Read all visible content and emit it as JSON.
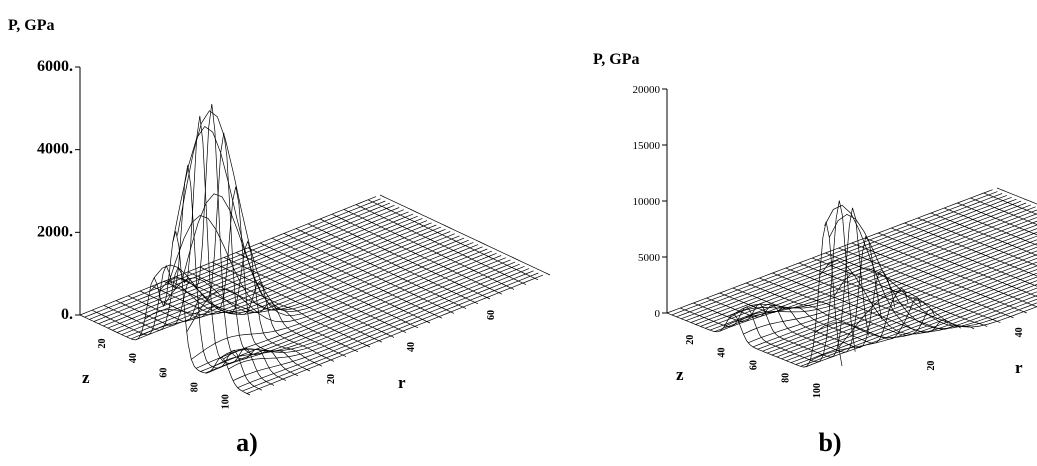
{
  "chart_data": [
    {
      "type": "surface3d",
      "panel_label": "a)",
      "zlabel": "P,  GPa",
      "xlabel": "z",
      "ylabel": "r",
      "zlim": [
        0,
        6000
      ],
      "z_ticks": [
        "6000.",
        "4000.",
        "2000.",
        "0."
      ],
      "x_ticks": [
        "20",
        "40",
        "60",
        "80",
        "100"
      ],
      "y_ticks": [
        "20",
        "40",
        "60"
      ],
      "peaks": [
        {
          "z": 48,
          "r": 3,
          "p": 1900
        },
        {
          "z": 62,
          "r": 8,
          "p": 5900
        },
        {
          "z": 92,
          "r": 3,
          "p": 650
        }
      ]
    },
    {
      "type": "surface3d",
      "panel_label": "b)",
      "zlabel": "P, GPa",
      "xlabel": "z",
      "ylabel": "r",
      "zlim": [
        0,
        20000
      ],
      "z_ticks": [
        "20000",
        "15000",
        "10000",
        "5000",
        "0"
      ],
      "x_ticks": [
        "20",
        "40",
        "60",
        "80",
        "100"
      ],
      "y_ticks": [
        "20",
        "40",
        "60"
      ],
      "peaks": [
        {
          "z": 42,
          "r": 3,
          "p": 2500
        },
        {
          "z": 100,
          "r": 3,
          "p": 15000
        },
        {
          "z": 108,
          "r": 14,
          "p": 5300
        }
      ]
    }
  ]
}
